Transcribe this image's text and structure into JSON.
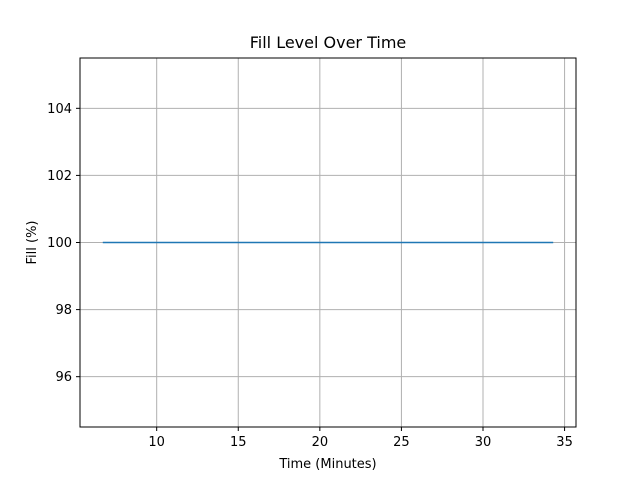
{
  "chart_data": {
    "type": "line",
    "title": "Fill Level Over Time",
    "xlabel": "Time (Minutes)",
    "ylabel": "Fill (%)",
    "xlim": [
      5.3,
      35.7
    ],
    "ylim": [
      94.5,
      105.5
    ],
    "xticks": [
      10,
      15,
      20,
      25,
      30,
      35
    ],
    "yticks": [
      96,
      98,
      100,
      102,
      104
    ],
    "grid": true,
    "series": [
      {
        "x": [
          6.7,
          34.3
        ],
        "y": [
          100,
          100
        ],
        "color": "#1f77b4"
      }
    ]
  }
}
